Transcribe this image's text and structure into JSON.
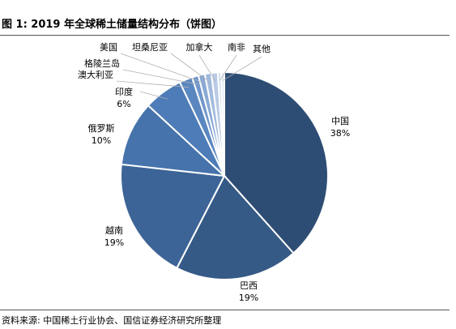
{
  "figure_title": "图 1:  2019 年全球稀土储量结构分布（饼图）",
  "source_note": "资料来源: 中国稀土行业协会、国信证券经济研究所整理",
  "chart_data": {
    "type": "pie",
    "title": "",
    "start_angle_deg": 0,
    "direction": "clockwise",
    "slices": [
      {
        "name": "中国",
        "value": 38,
        "label": "38%",
        "color": "#2e4d74"
      },
      {
        "name": "巴西",
        "value": 19,
        "label": "19%",
        "color": "#355a86"
      },
      {
        "name": "越南",
        "value": 19,
        "label": "19%",
        "color": "#3c6497"
      },
      {
        "name": "俄罗斯",
        "value": 10,
        "label": "10%",
        "color": "#4673ab"
      },
      {
        "name": "印度",
        "value": 6,
        "label": "6%",
        "color": "#4d7cb8"
      },
      {
        "name": "澳大利亚",
        "value": 2,
        "label": "",
        "color": "#5b87c0"
      },
      {
        "name": "格陵兰岛",
        "value": 1,
        "label": "",
        "color": "#7197cb"
      },
      {
        "name": "美国",
        "value": 1,
        "label": "",
        "color": "#8aa9d4"
      },
      {
        "name": "坦桑尼亚",
        "value": 1,
        "label": "",
        "color": "#a2bbdd"
      },
      {
        "name": "加拿大",
        "value": 1,
        "label": "",
        "color": "#b9cbe5"
      },
      {
        "name": "南非",
        "value": 0.5,
        "label": "",
        "color": "#cfdbee"
      },
      {
        "name": "其他",
        "value": 0.5,
        "label": "",
        "color": "#e2e9f4"
      }
    ]
  }
}
